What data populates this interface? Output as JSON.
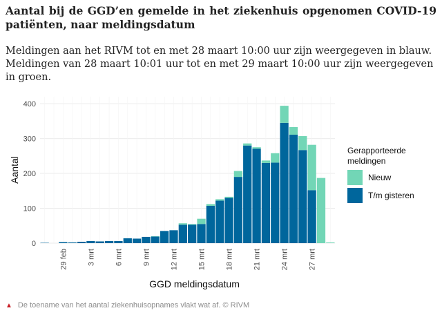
{
  "title": "Aantal bij de GGD’en gemelde in het ziekenhuis opgenomen COVID-19 patiënten, naar meldingsdatum",
  "subtitle": [
    "Meldingen aan het RIVM tot en met 28 maart 10:00 uur zijn weergegeven in blauw.",
    "Meldingen van 28 maart 10:01 uur tot en met 29 maart 10:00 uur zijn weergegeven in groen."
  ],
  "caption": "De toename van het aantal ziekenhuisopnames vlakt wat af. © RIVM",
  "colors": {
    "blue": "#00669c",
    "green": "#72d6b6",
    "grid": "#ebebeb",
    "caption_icon": "#c81d25"
  },
  "caption_icon": "triangle-up-icon",
  "chart_data": {
    "type": "bar",
    "stacked": true,
    "xlabel": "GGD meldingsdatum",
    "ylabel": "Aantal",
    "ylim": [
      0,
      420
    ],
    "yticks": [
      0,
      100,
      200,
      300,
      400
    ],
    "xtick_labels": [
      "29 feb",
      "3 mrt",
      "6 mrt",
      "9 mrt",
      "12 mrt",
      "15 mrt",
      "18 mrt",
      "21 mrt",
      "24 mrt",
      "27 mrt"
    ],
    "categories": [
      "27 feb",
      "28 feb",
      "29 feb",
      "1 mrt",
      "2 mrt",
      "3 mrt",
      "4 mrt",
      "5 mrt",
      "6 mrt",
      "7 mrt",
      "8 mrt",
      "9 mrt",
      "10 mrt",
      "11 mrt",
      "12 mrt",
      "13 mrt",
      "14 mrt",
      "15 mrt",
      "16 mrt",
      "17 mrt",
      "18 mrt",
      "19 mrt",
      "20 mrt",
      "21 mrt",
      "22 mrt",
      "23 mrt",
      "24 mrt",
      "25 mrt",
      "26 mrt",
      "27 mrt",
      "28 mrt",
      "29 mrt"
    ],
    "legend": {
      "title": "Gerapporteerde meldingen",
      "position": "right"
    },
    "grid": true,
    "series": [
      {
        "name": "T/m gisteren",
        "color": "#00669c",
        "values": [
          1,
          0,
          3,
          2,
          4,
          6,
          5,
          6,
          6,
          14,
          13,
          18,
          19,
          35,
          37,
          53,
          53,
          55,
          107,
          122,
          130,
          190,
          280,
          271,
          230,
          231,
          345,
          311,
          267,
          152,
          0,
          0
        ]
      },
      {
        "name": "Nieuw",
        "color": "#72d6b6",
        "values": [
          0,
          0,
          0,
          0,
          0,
          0,
          0,
          0,
          0,
          0,
          0,
          0,
          1,
          0,
          0,
          4,
          2,
          15,
          5,
          4,
          3,
          17,
          6,
          4,
          7,
          27,
          49,
          22,
          40,
          130,
          187,
          2
        ]
      }
    ]
  }
}
